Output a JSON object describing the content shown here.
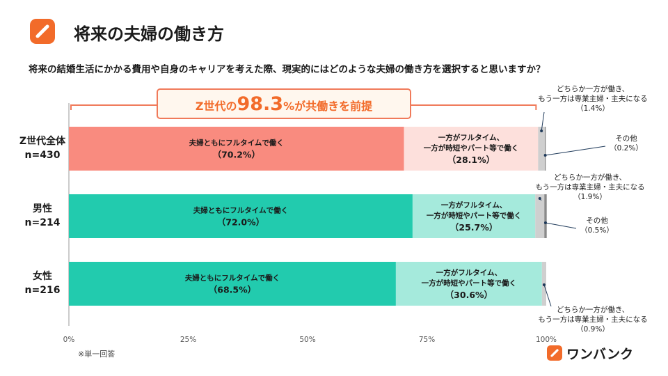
{
  "header": {
    "title": "将来の夫婦の働き方",
    "question": "将来の結婚生活にかかる費用や自身のキャリアを考えた際、現実的にはどのような夫婦の働き方を選択すると思いますか？"
  },
  "callout": {
    "prefix": "Z世代の",
    "value": "98.3",
    "unit": "%",
    "suffix": "が共働きを前提"
  },
  "chart_data": {
    "type": "bar",
    "orientation": "horizontal",
    "stacked": true,
    "xlim": [
      0,
      100
    ],
    "x_ticks": [
      "0%",
      "25%",
      "50%",
      "75%",
      "100%"
    ],
    "categories": [
      {
        "name": "Z世代全体",
        "n": "n=430"
      },
      {
        "name": "男性",
        "n": "n=214"
      },
      {
        "name": "女性",
        "n": "n=216"
      }
    ],
    "series": [
      {
        "key": "fulltime",
        "label_lines": [
          "夫婦ともにフルタイムで働く"
        ],
        "values": [
          70.2,
          72.0,
          68.5
        ],
        "value_labels": [
          "（70.2%）",
          "（72.0%）",
          "（68.5%）"
        ]
      },
      {
        "key": "parttime",
        "label_lines": [
          "一方がフルタイム、",
          "一方が時短やパート等で働く"
        ],
        "values": [
          28.1,
          25.7,
          30.6
        ],
        "value_labels": [
          "（28.1%）",
          "（25.7%）",
          "（30.6%）"
        ]
      },
      {
        "key": "single",
        "values": [
          1.4,
          1.9,
          0.9
        ]
      },
      {
        "key": "other",
        "values": [
          0.2,
          0.5,
          0.0
        ]
      }
    ],
    "annotations": [
      {
        "row": 0,
        "series": "single",
        "lines": [
          "どちらか一方が働き、",
          "もう一方は専業主婦・主夫になる",
          "（1.4%）"
        ]
      },
      {
        "row": 0,
        "series": "other",
        "lines": [
          "その他",
          "（0.2%）"
        ]
      },
      {
        "row": 1,
        "series": "single",
        "lines": [
          "どちらか一方が働き、",
          "もう一方は専業主婦・主夫になる",
          "（1.9%）"
        ]
      },
      {
        "row": 1,
        "series": "other",
        "lines": [
          "その他",
          "（0.5%）"
        ]
      },
      {
        "row": 2,
        "series": "single",
        "lines": [
          "どちらか一方が働き、",
          "もう一方は専業主婦・主夫になる",
          "（0.9%）"
        ]
      }
    ],
    "colors": {
      "overall_fulltime": "#f98b7f",
      "overall_parttime": "#fde0dc",
      "gender_fulltime": "#22cbae",
      "gender_parttime": "#a5eadc",
      "single": "#cfcfcf",
      "other": "#8a8a8a",
      "callout_border": "#f07a5a",
      "callout_fill": "#fff7ee",
      "callout_text": "#f26b2a",
      "axis": "#9a9a9a",
      "leader": "#1f3a5a"
    }
  },
  "footer": {
    "footnote": "※単一回答",
    "brand": "ワンバンク"
  }
}
